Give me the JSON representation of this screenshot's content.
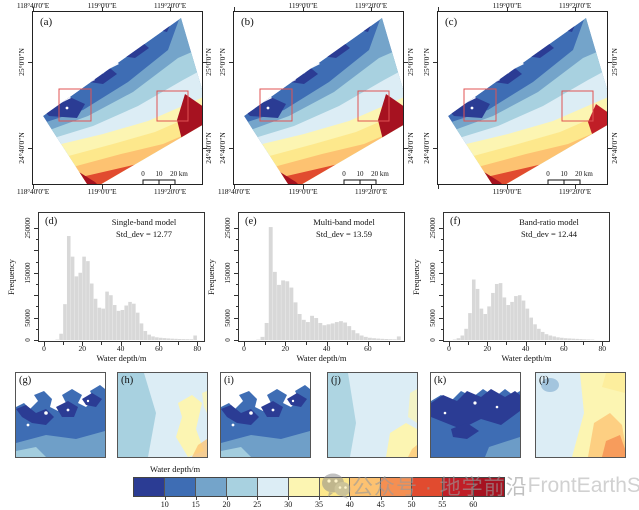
{
  "maps": {
    "box_color": "#e05353",
    "scalebar_labels": [
      "0",
      "10",
      "20 km"
    ],
    "panels": [
      {
        "label": "(a)",
        "top_axis": [
          "118°40'0\"E",
          "119°0'0\"E",
          "119°20'0\"E"
        ],
        "bottom_axis": [
          "118°40'0\"E",
          "119°0'0\"E",
          "119°20'0\"E"
        ],
        "left_axis": [
          "25°0'0\"N",
          "24°40'0\"N"
        ],
        "right_axis": [
          "25°0'0\"N",
          "24°40'0\"N"
        ]
      },
      {
        "label": "(b)",
        "top_axis": [
          "119°0'0\"E",
          "119°20'0\"E"
        ],
        "bottom_axis": [
          "118°40'0\"E",
          "119°0'0\"E",
          "119°20'0\"E"
        ],
        "left_axis": [
          "25°0'0\"N",
          "24°40'0\"N"
        ],
        "right_axis": [
          "25°0'0\"N",
          "24°40'0\"N"
        ]
      },
      {
        "label": "(c)",
        "top_axis": [
          "119°0'0\"E",
          "119°20'0\"E"
        ],
        "bottom_axis": [
          "119°0'0\"E",
          "119°20'0\"E"
        ],
        "left_axis": [
          "25°0'0\"N",
          "24°40'0\"N"
        ],
        "right_axis": [
          "25°0'0\"N",
          "24°40'0\"N"
        ]
      }
    ]
  },
  "small_panels": {
    "labels": [
      "(g)",
      "(h)",
      "(i)",
      "(j)",
      "(k)",
      "(l)"
    ]
  },
  "colorbar": {
    "label": "Water depth/m",
    "tick_labels": [
      "10",
      "15",
      "20",
      "25",
      "30",
      "35",
      "40",
      "45",
      "50",
      "55",
      "60"
    ],
    "colors": [
      "#2b3c94",
      "#3e6db4",
      "#74a4ca",
      "#a8d1e0",
      "#dcedf5",
      "#fcf5b2",
      "#fde88c",
      "#fdc271",
      "#f58f52",
      "#e14b2f",
      "#c01e27",
      "#a61220"
    ]
  },
  "watermark": {
    "text_cn": "公众号 · 地学前沿",
    "text_en": "FrontEarthSci"
  },
  "histogram_bar_color": "#d8d8d8",
  "chart_data": [
    {
      "type": "bar",
      "panel": "(d)",
      "title": "Single-band model",
      "annotation": "Std_dev = 12.77",
      "xlabel": "Water depth/m",
      "ylabel": "Frequency",
      "xlim": [
        0,
        82
      ],
      "ylim": [
        0,
        270000
      ],
      "xticks": [
        0,
        20,
        40,
        60,
        80
      ],
      "xticks_minor": [
        10,
        30,
        50,
        70
      ],
      "yticks_labeled": [
        0,
        50000,
        150000,
        250000
      ],
      "ytick_labels": [
        "0",
        "50000",
        "150000",
        "250000"
      ],
      "ytick_step": 25000,
      "bin_width": 2,
      "x_start": 0,
      "frequencies": [
        0,
        0,
        0,
        1000,
        14000,
        80000,
        232000,
        186000,
        142000,
        150000,
        186000,
        176000,
        126000,
        92000,
        72000,
        70000,
        108000,
        100000,
        78000,
        65000,
        67000,
        77000,
        85000,
        81000,
        61000,
        37000,
        20000,
        12000,
        8000,
        6000,
        5000,
        4200,
        3600,
        3000,
        2600,
        2200,
        2000,
        1800,
        1600,
        10000
      ]
    },
    {
      "type": "bar",
      "panel": "(e)",
      "title": "Multi-band model",
      "annotation": "Std_dev = 13.59",
      "xlabel": "Water depth/m",
      "ylabel": "Frequency",
      "xlim": [
        0,
        76
      ],
      "ylim": [
        0,
        270000
      ],
      "xticks": [
        0,
        20,
        40,
        60
      ],
      "xticks_minor": [
        10,
        30,
        50,
        70
      ],
      "yticks_labeled": [
        0,
        50000,
        150000,
        250000
      ],
      "ytick_labels": [
        "0",
        "50000",
        "150000",
        "250000"
      ],
      "ytick_step": 25000,
      "bin_width": 2,
      "x_start": 0,
      "frequencies": [
        0,
        0,
        0,
        800,
        7000,
        38000,
        252000,
        152000,
        123000,
        133000,
        131000,
        117000,
        84000,
        58000,
        45000,
        40000,
        54000,
        49000,
        38000,
        33000,
        35000,
        37000,
        40000,
        42000,
        39000,
        31000,
        22000,
        15000,
        10000,
        7000,
        5000,
        4000,
        3200,
        2600,
        2200,
        1800,
        1500,
        8000
      ]
    },
    {
      "type": "bar",
      "panel": "(f)",
      "title": "Band-ratio model",
      "annotation": "Std_dev = 12.44",
      "xlabel": "Water depth/m",
      "ylabel": "Frequency",
      "xlim": [
        0,
        82
      ],
      "ylim": [
        0,
        270000
      ],
      "xticks": [
        0,
        20,
        40,
        60,
        80
      ],
      "xticks_minor": [
        10,
        30,
        50,
        70
      ],
      "yticks_labeled": [
        0,
        50000,
        150000,
        250000
      ],
      "ytick_labels": [
        "0",
        "50000",
        "150000",
        "250000"
      ],
      "ytick_step": 25000,
      "bin_width": 2,
      "x_start": 0,
      "frequencies": [
        0,
        1000,
        4000,
        10000,
        25000,
        60000,
        135000,
        114000,
        70000,
        58000,
        75000,
        105000,
        125000,
        127000,
        95000,
        78000,
        85000,
        98000,
        100000,
        88000,
        70000,
        50000,
        35000,
        25000,
        18000,
        13000,
        10000,
        8000,
        6000,
        5000,
        4000,
        3500,
        3000,
        2500,
        2000,
        1500,
        1200,
        900,
        0,
        0
      ]
    }
  ]
}
